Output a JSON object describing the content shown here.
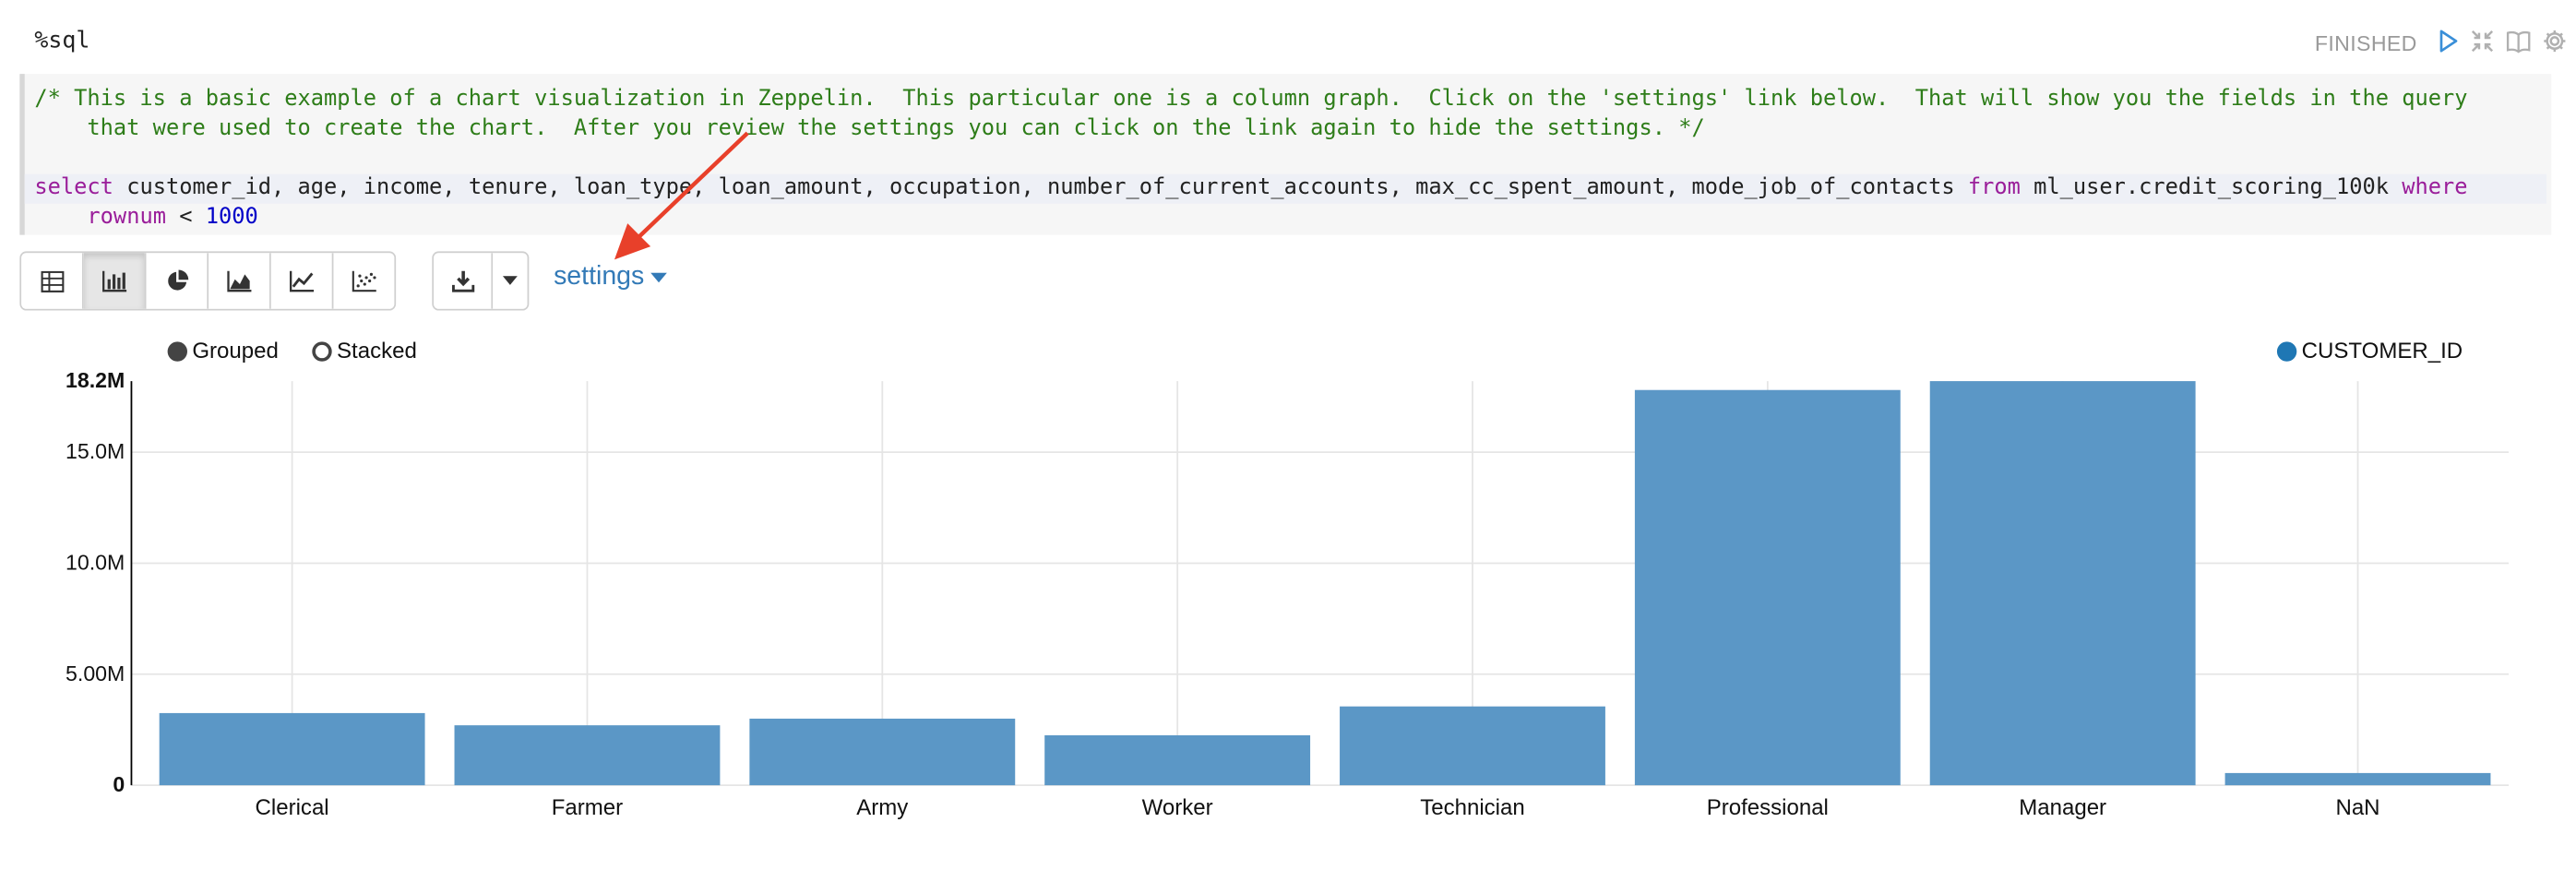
{
  "paragraph": {
    "interpreter": "%sql",
    "status": "FINISHED",
    "toolbar_icons": [
      "run-icon",
      "collapse-icon",
      "book-icon",
      "gear-icon"
    ]
  },
  "editor": {
    "comment_line1": "/* This is a basic example of a chart visualization in Zeppelin.  This particular one is a column graph.  Click on the 'settings' link below.  That will show you the fields in the query",
    "comment_line2": "    that were used to create the chart.  After you review the settings you can click on the link again to hide the settings. */",
    "select_kw": "select",
    "select_fields": " customer_id, age, income, tenure, loan_type, loan_amount, occupation, number_of_current_accounts, max_cc_spent_amount, mode_job_of_contacts ",
    "from_kw": "from",
    "table_name": " ml_user.credit_scoring_100k ",
    "where_kw": "where",
    "where_indent": "    ",
    "where_field": "rownum",
    "where_op": " < ",
    "where_value": "1000"
  },
  "viz_toolbar": {
    "buttons": [
      "table-icon",
      "bar-chart-icon",
      "pie-chart-icon",
      "area-chart-icon",
      "line-chart-icon",
      "scatter-chart-icon"
    ],
    "active": "bar-chart-icon",
    "download_icon": "download-icon",
    "settings_label": "settings"
  },
  "chart_options": {
    "grouped_label": "Grouped",
    "stacked_label": "Stacked",
    "selected": "Grouped"
  },
  "colors": {
    "bar": "#5b97c6",
    "legend": "#1f77b4",
    "annotation_arrow": "#e8402a",
    "link": "#337ab7"
  },
  "chart_data": {
    "type": "bar",
    "categories": [
      "Clerical",
      "Farmer",
      "Army",
      "Worker",
      "Technician",
      "Professional",
      "Manager",
      "NaN"
    ],
    "series": [
      {
        "name": "CUSTOMER_ID",
        "values": [
          3250000,
          2700000,
          3000000,
          2250000,
          3550000,
          17800000,
          18200000,
          550000
        ]
      }
    ],
    "y_ticks": [
      "0",
      "5.00M",
      "10.0M",
      "15.0M",
      "18.2M"
    ],
    "y_tick_values": [
      0,
      5000000,
      10000000,
      15000000,
      18200000
    ],
    "ylim": [
      0,
      18200000
    ],
    "grid": true,
    "legend_position": "top-right"
  }
}
